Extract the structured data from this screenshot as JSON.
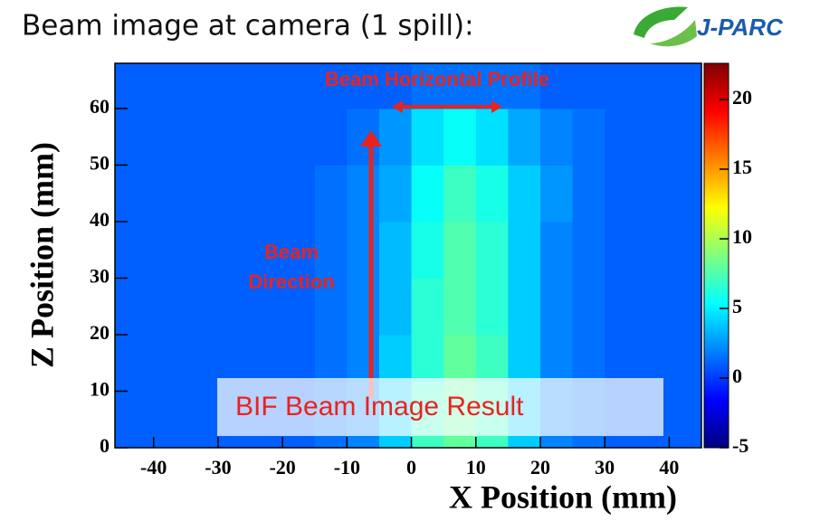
{
  "header": {
    "title": "Beam image at camera (1 spill):",
    "logo": "J-PARC"
  },
  "chart_data": {
    "type": "heatmap",
    "x_label": "X Position (mm)",
    "y_label": "Z Position (mm)",
    "annotations": [
      "Beam Horizontal Profile",
      "Beam",
      "Direction"
    ],
    "xlim": [
      -46,
      45
    ],
    "ylim": [
      0,
      68
    ],
    "zlim": [
      -5,
      22.6
    ],
    "xticks": [
      -40,
      -30,
      -20,
      -10,
      0,
      10,
      20,
      30,
      40
    ],
    "yticks": [
      0,
      10,
      20,
      30,
      40,
      50,
      60
    ],
    "zticks": [
      -5,
      0,
      5,
      10,
      15,
      20
    ],
    "colors": [
      "#00007f",
      "#0000ff",
      "#0080ff",
      "#00ffff",
      "#80ff80",
      "#ffff00",
      "#ff8000",
      "#ff0000",
      "#7f0000"
    ],
    "x_bins": [
      -46,
      -40,
      -35,
      -30,
      -25,
      -20,
      -15,
      -10,
      -5,
      0,
      5,
      10,
      15,
      20,
      25,
      30,
      35,
      40,
      45
    ],
    "y_bins": [
      0,
      10,
      20,
      30,
      40,
      50,
      60,
      68
    ],
    "z": [
      [
        1,
        1,
        1,
        1,
        1,
        1,
        1.5,
        2,
        4,
        7,
        8,
        7,
        4,
        2,
        1.5,
        1,
        1,
        1
      ],
      [
        1,
        1,
        1,
        1,
        1,
        1,
        1.5,
        2,
        4,
        6.5,
        8,
        7,
        4,
        2,
        1.5,
        1,
        1,
        1
      ],
      [
        1,
        1,
        1,
        1,
        1,
        1,
        1.5,
        2,
        3.5,
        6.5,
        7.5,
        6.5,
        4,
        2,
        1.5,
        1,
        1,
        1
      ],
      [
        1,
        1,
        1,
        1,
        1,
        1,
        1.5,
        2,
        3.5,
        6,
        7.5,
        6.5,
        4,
        2,
        1.5,
        1,
        1,
        1
      ],
      [
        1,
        1,
        1,
        1,
        1,
        1,
        1.5,
        2,
        3,
        5.5,
        7,
        6,
        4,
        2.5,
        1.5,
        1,
        1,
        1
      ],
      [
        1,
        1,
        1,
        1,
        1,
        1,
        1,
        1.5,
        2.5,
        4.5,
        5.5,
        4.5,
        3,
        2,
        1.5,
        1,
        1,
        1
      ],
      [
        1,
        1,
        1,
        1,
        1,
        1,
        1,
        1,
        1,
        1.5,
        1.5,
        1.5,
        1.5,
        1,
        1,
        1,
        1,
        1
      ]
    ]
  },
  "caption": "BIF Beam Image Result"
}
